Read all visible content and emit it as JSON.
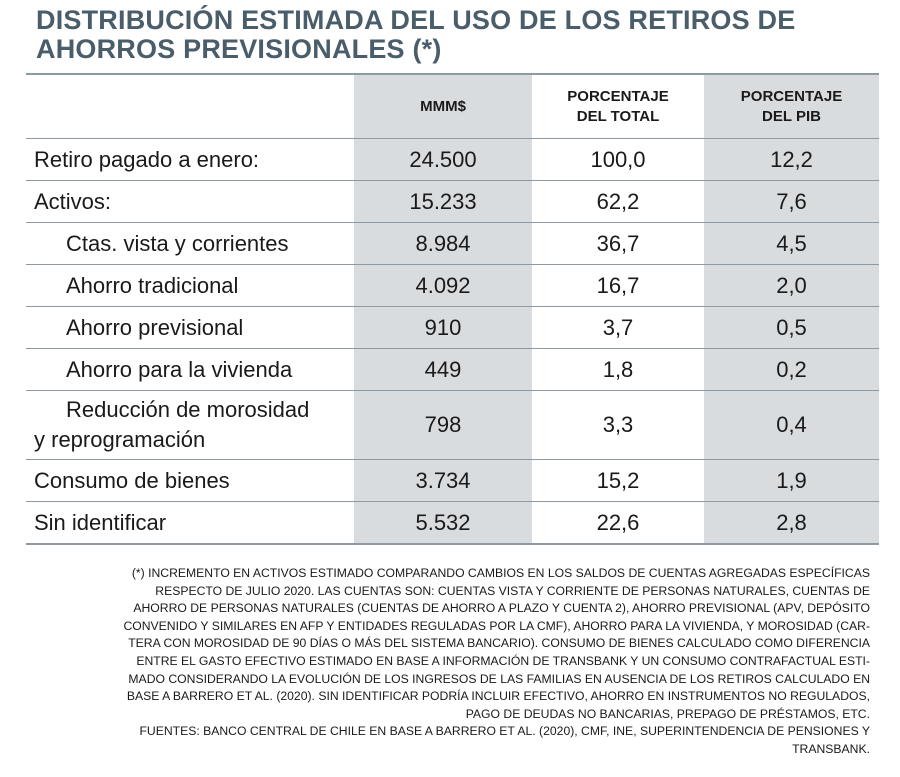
{
  "title": {
    "line1": "DISTRIBUCIÓN ESTIMADA DEL USO DE LOS RETIROS DE",
    "line2": "AHORROS PREVISIONALES (*)"
  },
  "table": {
    "headers": {
      "col1": "MMM$",
      "col2_line1": "PORCENTAJE",
      "col2_line2": "DEL TOTAL",
      "col3_line1": "PORCENTAJE",
      "col3_line2": "DEL PIB"
    },
    "rows": [
      {
        "label": "Retiro pagado a enero:",
        "mmm": "24.500",
        "pct_total": "100,0",
        "pct_pib": "12,2"
      },
      {
        "label": "Activos:",
        "mmm": "15.233",
        "pct_total": "62,2",
        "pct_pib": "7,6"
      },
      {
        "label": "Ctas. vista y corrientes",
        "mmm": "8.984",
        "pct_total": "36,7",
        "pct_pib": "4,5"
      },
      {
        "label": "Ahorro tradicional",
        "mmm": "4.092",
        "pct_total": "16,7",
        "pct_pib": "2,0"
      },
      {
        "label": "Ahorro previsional",
        "mmm": "910",
        "pct_total": "3,7",
        "pct_pib": "0,5"
      },
      {
        "label": "Ahorro para la vivienda",
        "mmm": "449",
        "pct_total": "1,8",
        "pct_pib": "0,2"
      },
      {
        "label_line1": "Reducción de morosidad",
        "label_line2": "y reprogramación",
        "mmm": "798",
        "pct_total": "3,3",
        "pct_pib": "0,4"
      },
      {
        "label": "Consumo de bienes",
        "mmm": "3.734",
        "pct_total": "15,2",
        "pct_pib": "1,9"
      },
      {
        "label": "Sin identificar",
        "mmm": "5.532",
        "pct_total": "22,6",
        "pct_pib": "2,8"
      }
    ]
  },
  "notes": {
    "lines": [
      "(*) INCREMENTO EN ACTIVOS ESTIMADO COMPARANDO CAMBIOS EN LOS SALDOS DE CUENTAS AGREGADAS ESPECÍFICAS",
      "RESPECTO DE JULIO 2020. LAS CUENTAS SON: CUENTAS VISTA Y CORRIENTE DE PERSONAS NATURALES, CUENTAS DE",
      "AHORRO DE PERSONAS NATURALES (CUENTAS DE AHORRO A PLAZO Y CUENTA 2), AHORRO PREVISIONAL (APV, DEPÓSITO",
      "CONVENIDO Y SIMILARES EN AFP Y ENTIDADES REGULADAS POR LA CMF), AHORRO PARA LA VIVIENDA, Y MOROSIDAD (CAR-",
      "TERA CON MOROSIDAD DE 90 DÍAS O MÁS DEL SISTEMA BANCARIO). CONSUMO DE BIENES CALCULADO COMO DIFERENCIA",
      "ENTRE EL GASTO EFECTIVO ESTIMADO EN BASE A INFORMACIÓN DE TRANSBANK Y UN CONSUMO CONTRAFACTUAL ESTI-",
      "MADO CONSIDERANDO LA EVOLUCIÓN DE LOS INGRESOS DE LAS FAMILIAS EN AUSENCIA DE LOS RETIROS CALCULADO EN",
      "BASE A BARRERO ET AL. (2020). SIN IDENTIFICAR PODRÍA INCLUIR EFECTIVO, AHORRO EN INSTRUMENTOS NO REGULADOS,",
      "PAGO DE DEUDAS NO BANCARIAS, PREPAGO DE PRÉSTAMOS, ETC.",
      "FUENTES: BANCO CENTRAL DE CHILE EN BASE A BARRERO ET AL. (2020), CMF, INE, SUPERINTENDENCIA DE PENSIONES Y",
      "TRANSBANK."
    ]
  }
}
